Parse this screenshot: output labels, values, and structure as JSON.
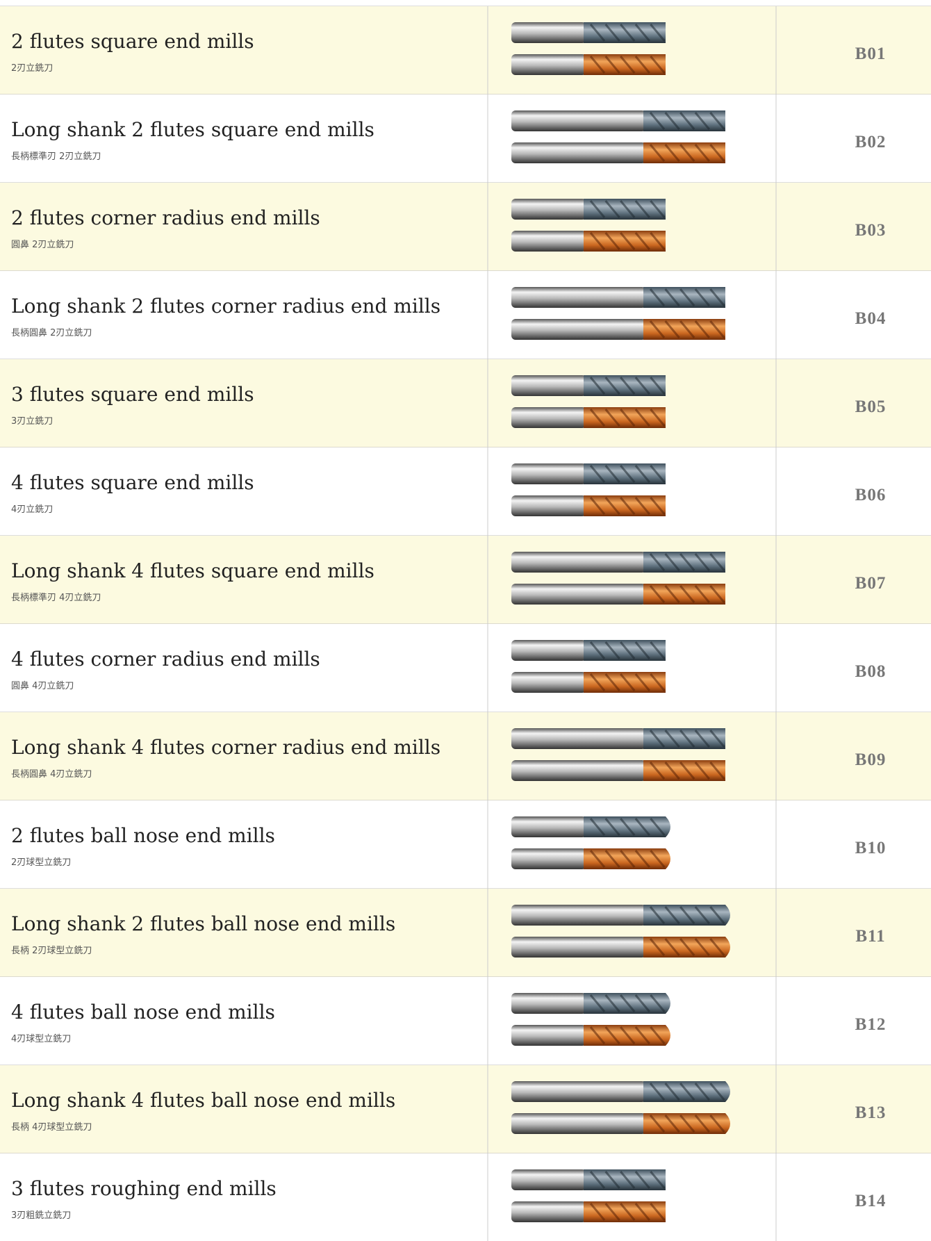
{
  "rows": [
    {
      "title": "2 flutes square end mills",
      "subtitle": "2刃立銑刀",
      "code": "B01"
    },
    {
      "title": "Long shank 2 flutes square end mills",
      "subtitle": "長柄標準刃 2刃立銑刀",
      "code": "B02"
    },
    {
      "title": "2 flutes corner radius end mills",
      "subtitle": "圓鼻 2刃立銑刀",
      "code": "B03"
    },
    {
      "title": "Long shank 2 flutes corner radius end mills",
      "subtitle": "長柄圓鼻 2刃立銑刀",
      "code": "B04"
    },
    {
      "title": "3 flutes square end mills",
      "subtitle": "3刃立銑刀",
      "code": "B05"
    },
    {
      "title": "4 flutes square end mills",
      "subtitle": "4刃立銑刀",
      "code": "B06"
    },
    {
      "title": "Long shank 4 flutes square end mills",
      "subtitle": "長柄標準刃 4刃立銑刀",
      "code": "B07"
    },
    {
      "title": "4 flutes corner radius end mills",
      "subtitle": "圓鼻 4刃立銑刀",
      "code": "B08"
    },
    {
      "title": "Long shank 4 flutes corner radius end mills",
      "subtitle": "長柄圓鼻 4刃立銑刀",
      "code": "B09"
    },
    {
      "title": "2 flutes ball nose end mills",
      "subtitle": "2刃球型立銑刀",
      "code": "B10"
    },
    {
      "title": "Long shank 2 flutes ball nose end mills",
      "subtitle": "長柄 2刃球型立銑刀",
      "code": "B11"
    },
    {
      "title": "4 flutes ball nose end mills",
      "subtitle": "4刃球型立銑刀",
      "code": "B12"
    },
    {
      "title": "Long shank 4 flutes ball nose end mills",
      "subtitle": "長柄 4刃球型立銑刀",
      "code": "B13"
    },
    {
      "title": "3 flutes roughing end mills",
      "subtitle": "3刃粗銑立銑刀",
      "code": "B14"
    }
  ]
}
